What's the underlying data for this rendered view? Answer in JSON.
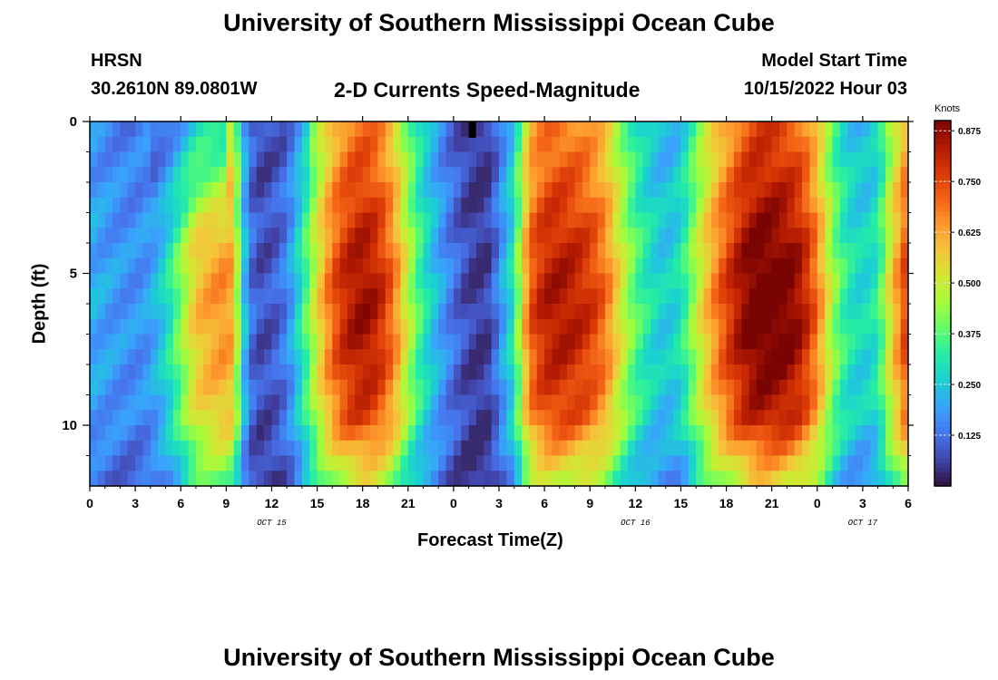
{
  "page": {
    "title_top": "University of Southern Mississippi Ocean Cube",
    "title_bottom": "University of Southern Mississippi Ocean Cube",
    "station": "HRSN",
    "location": "30.2610N  89.0801W",
    "model_start_label": "Model Start Time",
    "model_start_value": "10/15/2022 Hour 03"
  },
  "chart_data": {
    "type": "heatmap",
    "title": "2-D Currents Speed-Magnitude",
    "xlabel": "Forecast Time(Z)",
    "ylabel": "Depth (ft)",
    "x_hours_range": [
      0,
      54
    ],
    "x_tick_labels": [
      "0",
      "3",
      "6",
      "9",
      "12",
      "15",
      "18",
      "21",
      "0",
      "3",
      "6",
      "9",
      "12",
      "15",
      "18",
      "21",
      "0",
      "3",
      "6"
    ],
    "date_labels": [
      {
        "text": "OCT 15",
        "hour": 12
      },
      {
        "text": "OCT 16",
        "hour": 36
      },
      {
        "text": "OCT 17",
        "hour": 51
      }
    ],
    "y_range": [
      0,
      12
    ],
    "y_tick_labels": [
      "0",
      "5",
      "10"
    ],
    "y_tick_values": [
      0,
      5,
      10
    ],
    "colorbar": {
      "label": "Knots",
      "range": [
        0.0,
        0.9
      ],
      "ticks": [
        "0.875",
        "0.750",
        "0.625",
        "0.500",
        "0.375",
        "0.250",
        "0.125"
      ],
      "tick_values": [
        0.875,
        0.75,
        0.625,
        0.5,
        0.375,
        0.25,
        0.125
      ],
      "colors": [
        "#30123b",
        "#4145ab",
        "#4675ed",
        "#39a2fc",
        "#1bcfd4",
        "#24eca6",
        "#61fc6c",
        "#a4fc3b",
        "#d1e834",
        "#f3c63a",
        "#fe9b2d",
        "#f36315",
        "#d93806",
        "#b11901",
        "#7a0402"
      ]
    },
    "time_profile_hours": [
      0,
      2,
      3,
      4,
      5,
      6,
      7,
      8,
      9,
      9.5,
      10,
      10.5,
      11,
      12,
      13,
      14,
      15,
      16,
      17,
      18,
      19,
      20,
      21,
      22,
      23,
      24,
      25,
      26,
      26.5,
      27,
      28,
      28.5,
      29,
      30,
      31,
      32,
      33,
      34,
      35,
      36,
      37,
      38,
      39,
      40,
      41,
      42,
      43,
      44,
      45,
      46,
      47,
      48,
      49,
      50,
      51,
      52,
      53,
      54
    ],
    "time_profile_knots": [
      0.2,
      0.17,
      0.16,
      0.18,
      0.26,
      0.4,
      0.55,
      0.6,
      0.62,
      0.58,
      0.3,
      0.14,
      0.08,
      0.08,
      0.14,
      0.3,
      0.5,
      0.68,
      0.78,
      0.82,
      0.78,
      0.66,
      0.46,
      0.3,
      0.2,
      0.12,
      0.06,
      0.04,
      0.08,
      0.15,
      0.3,
      0.5,
      0.68,
      0.78,
      0.8,
      0.78,
      0.74,
      0.66,
      0.5,
      0.36,
      0.28,
      0.24,
      0.28,
      0.45,
      0.6,
      0.72,
      0.82,
      0.88,
      0.88,
      0.86,
      0.8,
      0.65,
      0.42,
      0.3,
      0.26,
      0.3,
      0.55,
      0.75
    ]
  }
}
